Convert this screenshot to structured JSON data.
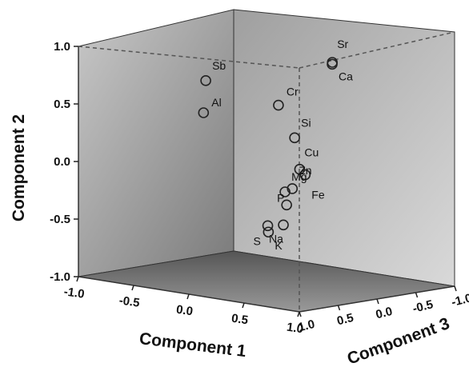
{
  "chart_data": {
    "type": "scatter",
    "dimensions": 3,
    "axes": {
      "x": {
        "label": "Component 1",
        "ticks": [
          "-1.0",
          "-0.5",
          "0.0",
          "0.5",
          "1.0"
        ],
        "range": [
          -1.0,
          1.0
        ]
      },
      "y": {
        "label": "Component 2",
        "ticks": [
          "1.0",
          "0.5",
          "0.0",
          "-0.5",
          "-1.0"
        ],
        "range": [
          -1.0,
          1.0
        ]
      },
      "z": {
        "label": "Component 3",
        "ticks": [
          "1.0",
          "0.5",
          "0.0",
          "-0.5",
          "-1.0"
        ],
        "range": [
          -1.0,
          1.0
        ]
      }
    },
    "points": [
      {
        "label": "Sr",
        "x": 0.68,
        "y": 1.02,
        "z": 0.12
      },
      {
        "label": "Ca",
        "x": 0.7,
        "y": 1.01,
        "z": 0.15
      },
      {
        "label": "Cr",
        "x": 0.6,
        "y": 0.7,
        "z": 0.7
      },
      {
        "label": "Sb",
        "x": -0.55,
        "y": 0.66,
        "z": 0.0
      },
      {
        "label": "Si",
        "x": 0.62,
        "y": 0.4,
        "z": 0.52
      },
      {
        "label": "Al",
        "x": -0.5,
        "y": 0.4,
        "z": 0.1
      },
      {
        "label": "Cu",
        "x": 0.3,
        "y": 0.02,
        "z": 0.0
      },
      {
        "label": "Fe",
        "x": 0.35,
        "y": -0.02,
        "z": 0.0
      },
      {
        "label": "Zn",
        "x": 0.55,
        "y": -0.06,
        "z": 0.45
      },
      {
        "label": "Mg",
        "x": 0.8,
        "y": 0.0,
        "z": 0.9
      },
      {
        "label": "Na",
        "x": 0.75,
        "y": -0.3,
        "z": 0.85
      },
      {
        "label": "P",
        "x": 0.85,
        "y": -0.1,
        "z": 0.95
      },
      {
        "label": "S",
        "x": 0.7,
        "y": -0.3,
        "z": 0.98
      },
      {
        "label": "K",
        "x": 0.72,
        "y": -0.35,
        "z": 1.0
      }
    ],
    "grid": false,
    "colors": {
      "back_wall": "#9a9a9a",
      "side_wall": "#b0b0b0",
      "floor": "#6e6e6e",
      "edge": "#444444",
      "marker_stroke": "#222222"
    }
  }
}
